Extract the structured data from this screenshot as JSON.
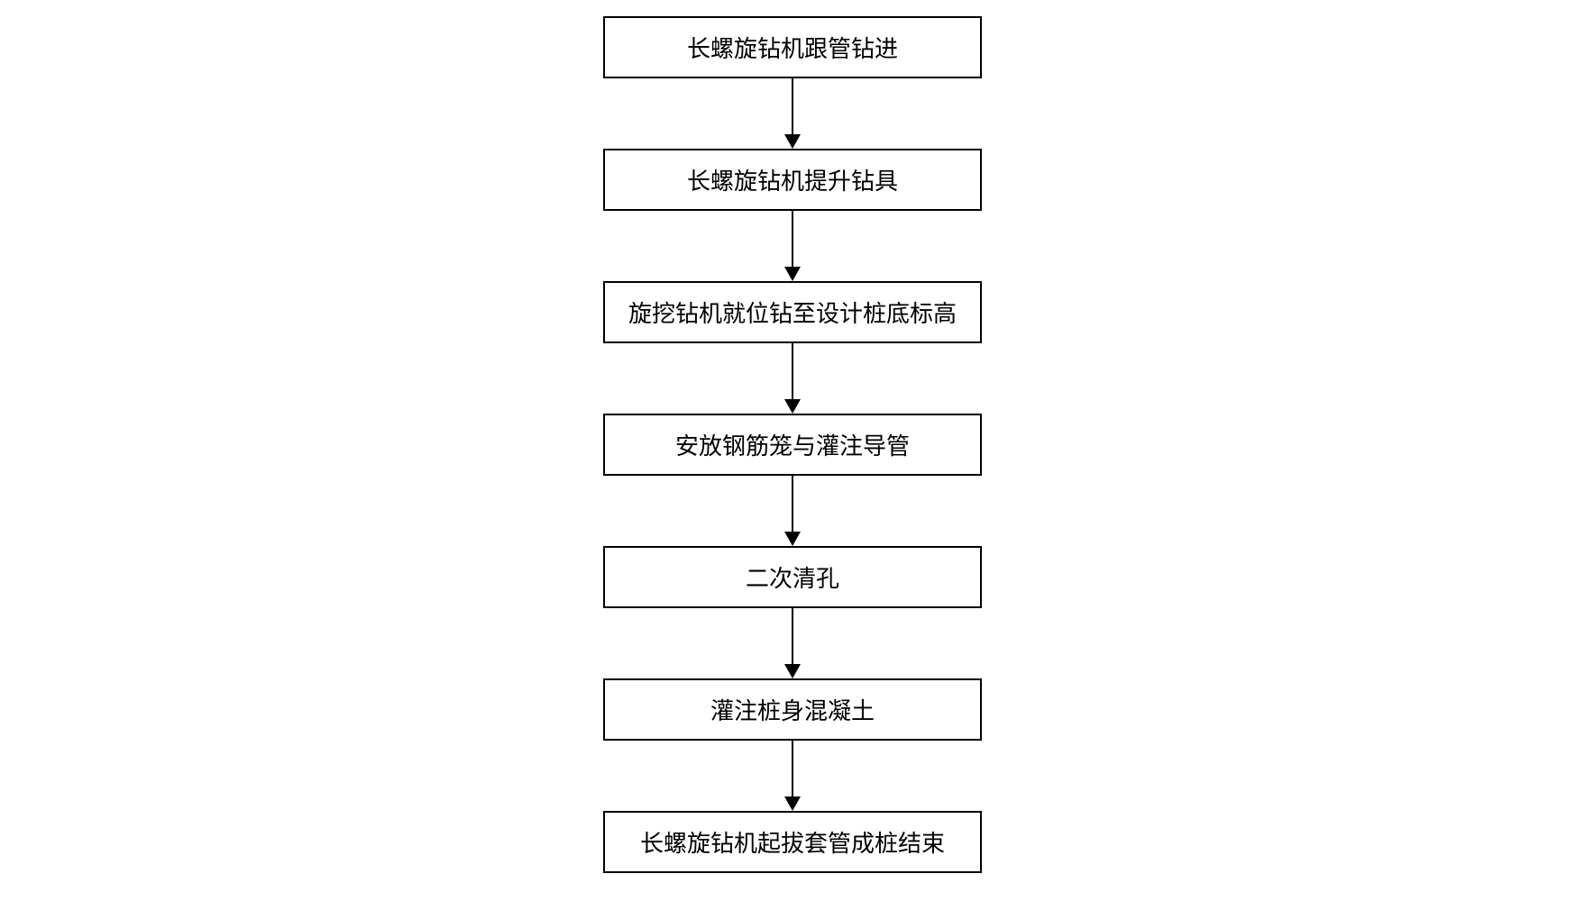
{
  "flowchart": {
    "type": "flowchart",
    "direction": "vertical",
    "background_color": "#ffffff",
    "node_border_color": "#000000",
    "node_border_width": 2,
    "node_fill_color": "#ffffff",
    "node_text_color": "#000000",
    "node_fontsize": 26,
    "node_min_width": 420,
    "node_padding_v": 14,
    "node_padding_h": 20,
    "arrow_color": "#000000",
    "arrow_length": 78,
    "arrow_line_width": 2,
    "arrow_head_width": 18,
    "arrow_head_height": 16,
    "nodes": [
      {
        "id": "n1",
        "label": "长螺旋钻机跟管钻进"
      },
      {
        "id": "n2",
        "label": "长螺旋钻机提升钻具"
      },
      {
        "id": "n3",
        "label": "旋挖钻机就位钻至设计桩底标高"
      },
      {
        "id": "n4",
        "label": "安放钢筋笼与灌注导管"
      },
      {
        "id": "n5",
        "label": "二次清孔"
      },
      {
        "id": "n6",
        "label": "灌注桩身混凝土"
      },
      {
        "id": "n7",
        "label": "长螺旋钻机起拔套管成桩结束"
      }
    ],
    "edges": [
      {
        "from": "n1",
        "to": "n2"
      },
      {
        "from": "n2",
        "to": "n3"
      },
      {
        "from": "n3",
        "to": "n4"
      },
      {
        "from": "n4",
        "to": "n5"
      },
      {
        "from": "n5",
        "to": "n6"
      },
      {
        "from": "n6",
        "to": "n7"
      }
    ]
  }
}
